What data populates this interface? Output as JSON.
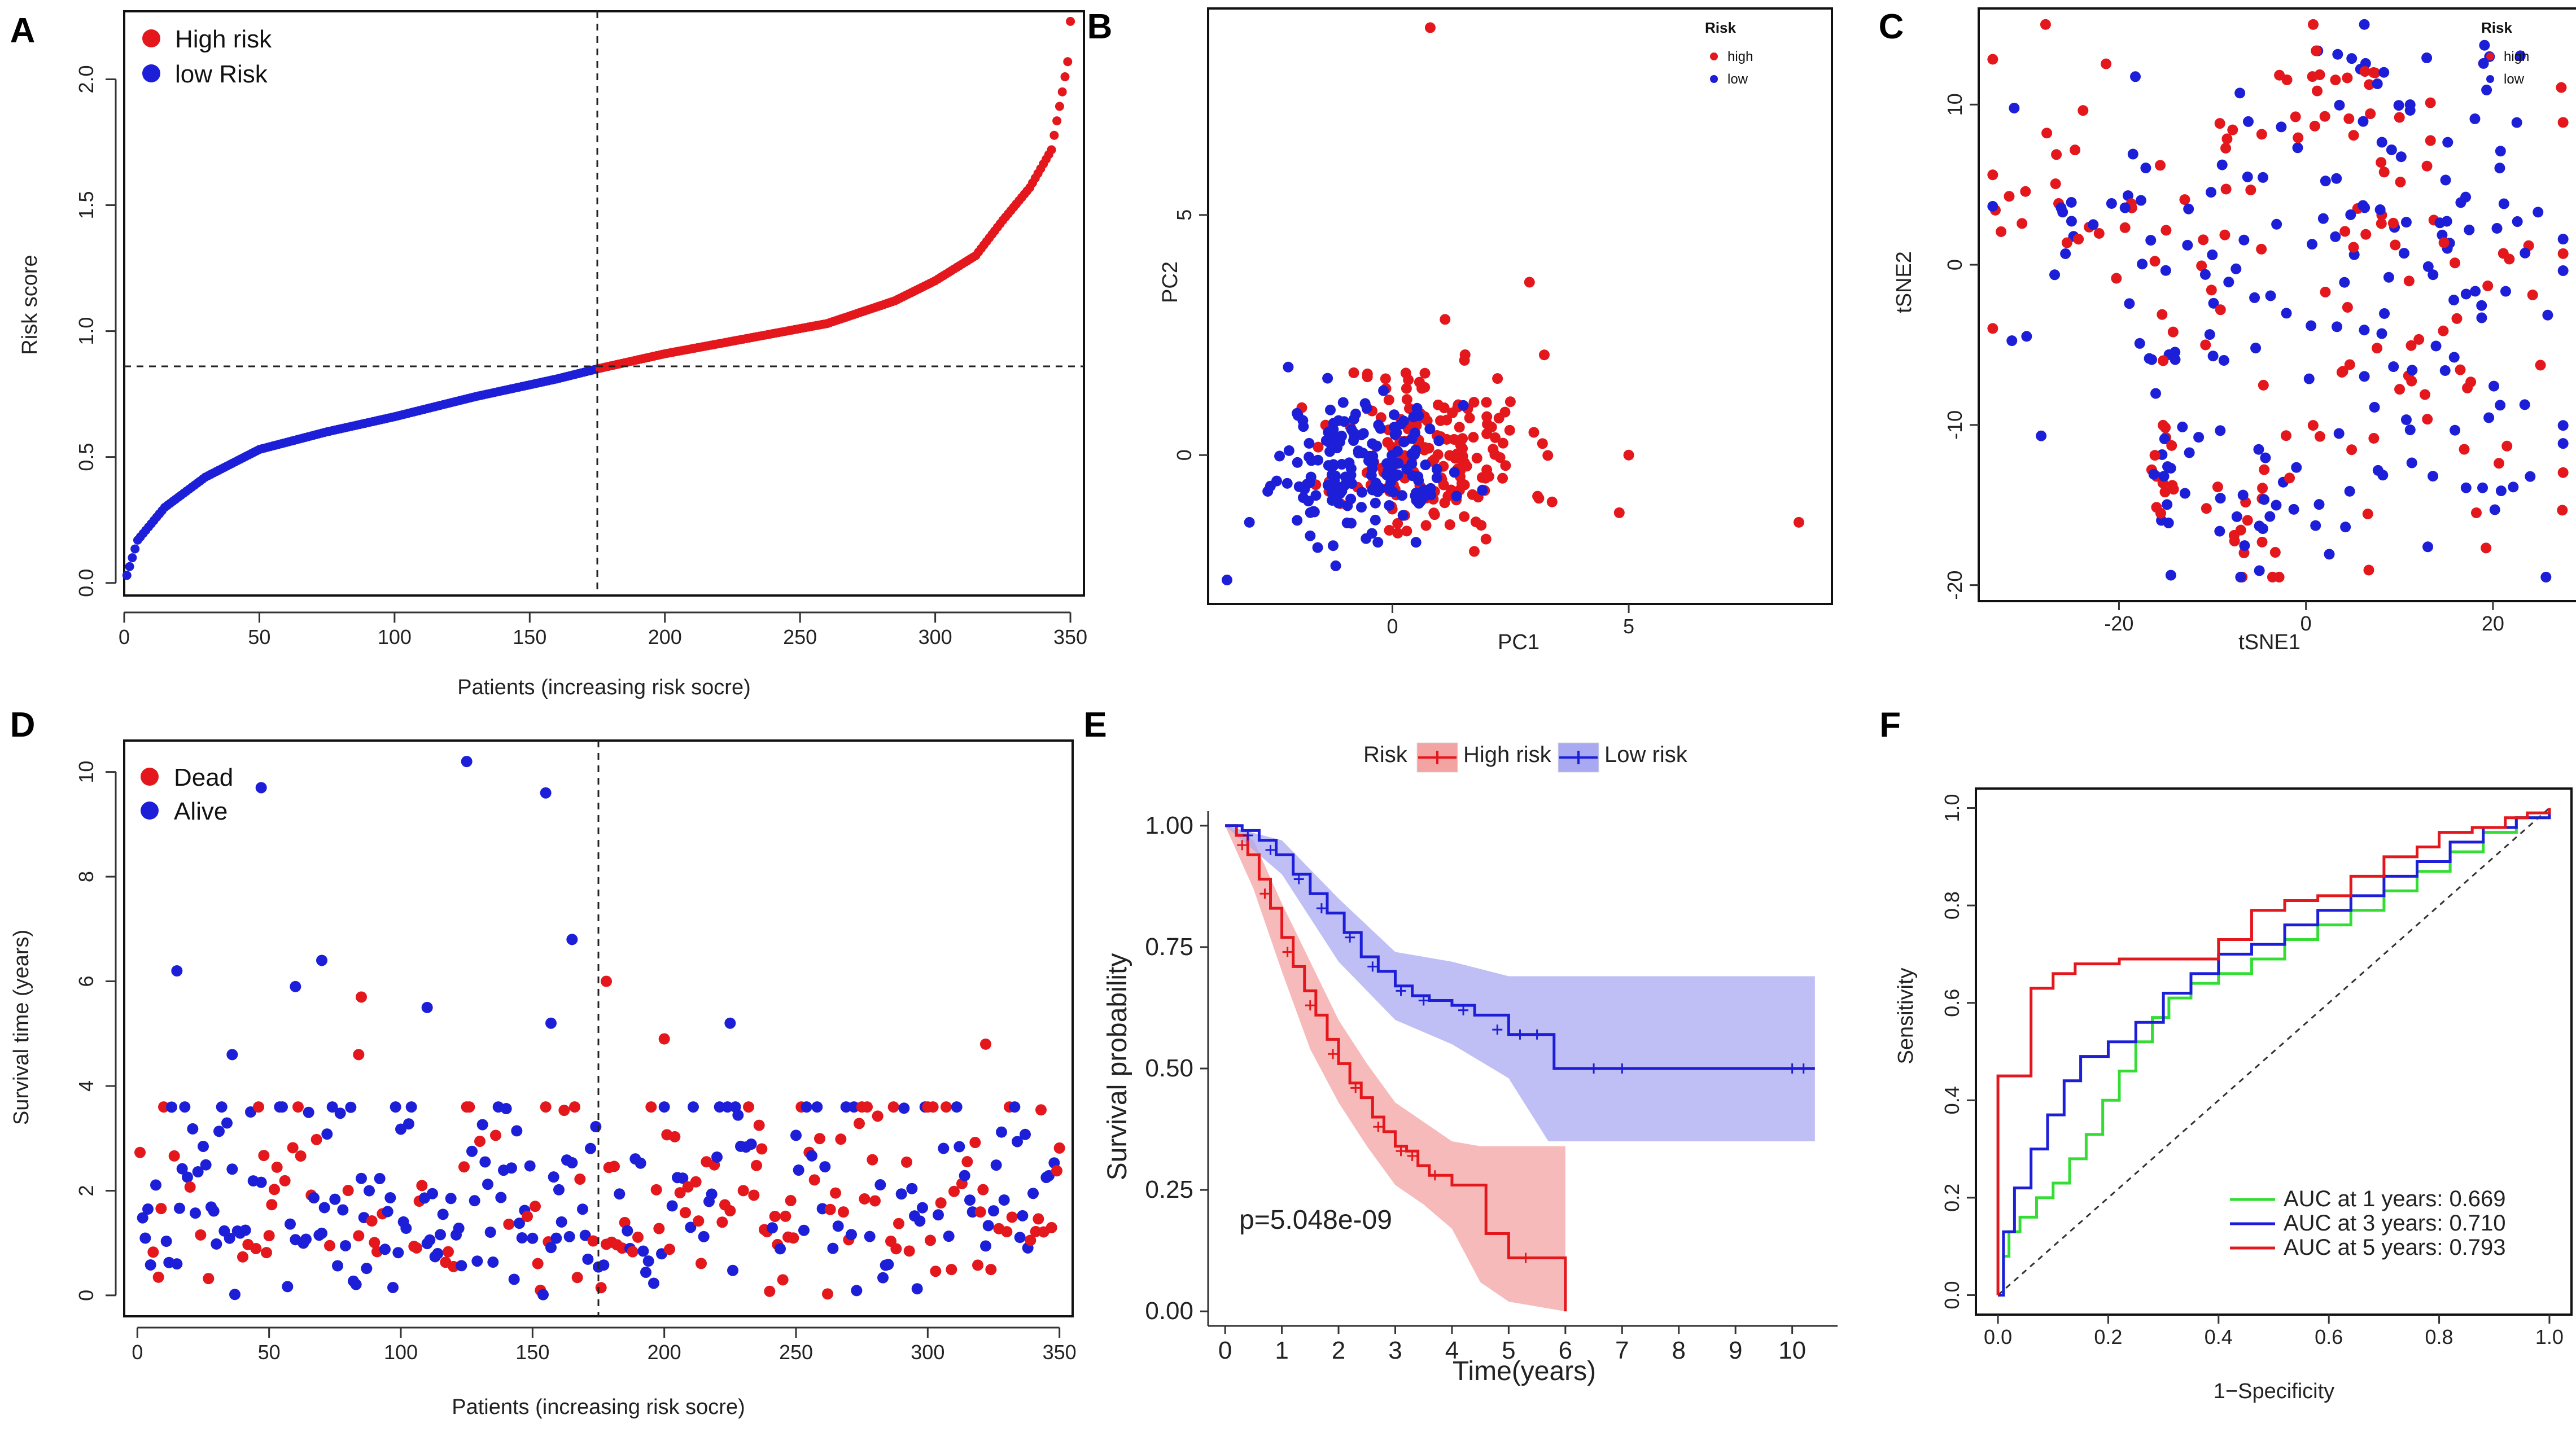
{
  "colors": {
    "high": "#e3171c",
    "low": "#1d1fd8",
    "green": "#33dd33",
    "high_band": "#f4a3a3",
    "low_band": "#a9a9f2"
  },
  "chart_data": [
    {
      "panel": "A",
      "type": "scatter",
      "xlabel": "Patients (increasing risk socre)",
      "ylabel": "Risk score",
      "xlim": [
        0,
        355
      ],
      "ylim": [
        -0.05,
        2.27
      ],
      "xticks": [
        "0",
        "50",
        "100",
        "150",
        "200",
        "250",
        "300",
        "350"
      ],
      "yticks": [
        "0.0",
        "0.5",
        "1.0",
        "1.5",
        "2.0"
      ],
      "cutoff_x": 175,
      "cutoff_y": 0.86,
      "legend": [
        "High risk",
        "low Risk"
      ],
      "n_patients": 350,
      "curve_anchors": [
        [
          1,
          0.03
        ],
        [
          5,
          0.17
        ],
        [
          15,
          0.3
        ],
        [
          30,
          0.42
        ],
        [
          50,
          0.53
        ],
        [
          75,
          0.6
        ],
        [
          100,
          0.66
        ],
        [
          130,
          0.74
        ],
        [
          160,
          0.81
        ],
        [
          175,
          0.85
        ],
        [
          200,
          0.91
        ],
        [
          230,
          0.97
        ],
        [
          260,
          1.03
        ],
        [
          285,
          1.12
        ],
        [
          300,
          1.2
        ],
        [
          315,
          1.3
        ],
        [
          325,
          1.44
        ],
        [
          335,
          1.57
        ],
        [
          343,
          1.72
        ],
        [
          347,
          1.95
        ],
        [
          349,
          2.07
        ],
        [
          350,
          2.23
        ]
      ]
    },
    {
      "panel": "B",
      "type": "scatter",
      "xlabel": "PC1",
      "ylabel": "PC2",
      "xlim": [
        -3.9,
        9.3
      ],
      "ylim": [
        -3.1,
        9.3
      ],
      "xticks": [
        "0",
        "5"
      ],
      "yticks": [
        "0",
        "5"
      ],
      "legend_title": "Risk",
      "legend": [
        "high",
        "low"
      ],
      "series": [
        {
          "name": "high",
          "n": 175,
          "center": [
            0.9,
            0.1
          ],
          "spread": [
            1.0,
            1.0
          ]
        },
        {
          "name": "low",
          "n": 175,
          "center": [
            -0.6,
            -0.2
          ],
          "spread": [
            0.9,
            0.7
          ]
        }
      ],
      "outliers": [
        [
          0.8,
          8.9
        ],
        [
          8.6,
          -1.4
        ],
        [
          5.0,
          0.0
        ],
        [
          4.8,
          -1.2
        ],
        [
          2.9,
          3.6
        ],
        [
          -3.5,
          -2.6
        ]
      ]
    },
    {
      "panel": "C",
      "type": "scatter",
      "xlabel": "tSNE1",
      "ylabel": "tSNE2",
      "xlim": [
        -35,
        29
      ],
      "ylim": [
        -21,
        16
      ],
      "xticks": [
        "-20",
        "0",
        "20"
      ],
      "yticks": [
        "-20",
        "-10",
        "0",
        "10"
      ],
      "legend_title": "Risk",
      "legend": [
        "high",
        "low"
      ],
      "series": [
        {
          "name": "high",
          "n": 175
        },
        {
          "name": "low",
          "n": 175
        }
      ]
    },
    {
      "panel": "D",
      "type": "scatter",
      "xlabel": "Patients (increasing risk socre)",
      "ylabel": "Survival time (years)",
      "xlim": [
        -5,
        355
      ],
      "ylim": [
        -0.4,
        10.6
      ],
      "xticks": [
        "0",
        "50",
        "100",
        "150",
        "200",
        "250",
        "300",
        "350"
      ],
      "yticks": [
        "0",
        "2",
        "4",
        "6",
        "8",
        "10"
      ],
      "cutoff_x": 175,
      "legend": [
        "Dead",
        "Alive"
      ],
      "highlights": [
        [
          125,
          10.2,
          "Alive"
        ],
        [
          47,
          9.7,
          "Alive"
        ],
        [
          155,
          9.6,
          "Alive"
        ],
        [
          165,
          6.8,
          "Alive"
        ],
        [
          70,
          6.4,
          "Alive"
        ],
        [
          15,
          6.2,
          "Alive"
        ],
        [
          178,
          6.0,
          "Dead"
        ],
        [
          60,
          5.9,
          "Alive"
        ],
        [
          85,
          5.7,
          "Dead"
        ],
        [
          110,
          5.5,
          "Alive"
        ],
        [
          200,
          4.9,
          "Dead"
        ],
        [
          225,
          5.2,
          "Alive"
        ],
        [
          322,
          4.8,
          "Dead"
        ],
        [
          84,
          4.6,
          "Dead"
        ],
        [
          36,
          4.6,
          "Alive"
        ],
        [
          157,
          5.2,
          "Alive"
        ]
      ]
    },
    {
      "panel": "E",
      "type": "line",
      "subtype": "kaplan-meier",
      "xlabel": "Time(years)",
      "ylabel": "Survival probability",
      "xlim": [
        -0.3,
        10.8
      ],
      "ylim": [
        -0.03,
        1.03
      ],
      "xticks": [
        "0",
        "1",
        "2",
        "3",
        "4",
        "5",
        "6",
        "7",
        "8",
        "9",
        "10"
      ],
      "yticks": [
        "0.00",
        "0.25",
        "0.50",
        "0.75",
        "1.00"
      ],
      "legend_title": "Risk",
      "legend": [
        "High risk",
        "Low risk"
      ],
      "pvalue": "p=5.048e-09",
      "series": [
        {
          "name": "High risk",
          "points": [
            [
              0,
              1.0
            ],
            [
              0.2,
              0.98
            ],
            [
              0.4,
              0.94
            ],
            [
              0.6,
              0.89
            ],
            [
              0.8,
              0.83
            ],
            [
              1.0,
              0.77
            ],
            [
              1.2,
              0.71
            ],
            [
              1.4,
              0.66
            ],
            [
              1.6,
              0.61
            ],
            [
              1.8,
              0.56
            ],
            [
              2.0,
              0.51
            ],
            [
              2.2,
              0.47
            ],
            [
              2.4,
              0.44
            ],
            [
              2.6,
              0.4
            ],
            [
              2.8,
              0.37
            ],
            [
              3.0,
              0.34
            ],
            [
              3.2,
              0.33
            ],
            [
              3.4,
              0.3
            ],
            [
              3.6,
              0.28
            ],
            [
              4.0,
              0.26
            ],
            [
              4.6,
              0.16
            ],
            [
              5.0,
              0.11
            ],
            [
              5.6,
              0.11
            ],
            [
              6.0,
              0.11
            ],
            [
              6.0,
              0.0
            ]
          ],
          "lower": [
            [
              0,
              1.0
            ],
            [
              0.5,
              0.87
            ],
            [
              1.0,
              0.7
            ],
            [
              1.5,
              0.54
            ],
            [
              2.0,
              0.43
            ],
            [
              2.5,
              0.34
            ],
            [
              3.0,
              0.26
            ],
            [
              3.5,
              0.22
            ],
            [
              4.0,
              0.17
            ],
            [
              4.5,
              0.06
            ],
            [
              5.0,
              0.02
            ],
            [
              6.0,
              0.0
            ]
          ],
          "upper": [
            [
              0,
              1.0
            ],
            [
              0.5,
              0.97
            ],
            [
              1.0,
              0.84
            ],
            [
              1.5,
              0.72
            ],
            [
              2.0,
              0.6
            ],
            [
              2.5,
              0.51
            ],
            [
              3.0,
              0.43
            ],
            [
              3.5,
              0.39
            ],
            [
              4.0,
              0.35
            ],
            [
              4.5,
              0.34
            ],
            [
              5.0,
              0.34
            ],
            [
              6.0,
              0.34
            ]
          ],
          "censor": [
            [
              0.3,
              0.96
            ],
            [
              0.7,
              0.86
            ],
            [
              1.1,
              0.74
            ],
            [
              1.5,
              0.63
            ],
            [
              1.9,
              0.53
            ],
            [
              2.3,
              0.46
            ],
            [
              2.7,
              0.38
            ],
            [
              3.1,
              0.33
            ],
            [
              3.3,
              0.32
            ],
            [
              3.7,
              0.28
            ],
            [
              5.3,
              0.11
            ]
          ]
        },
        {
          "name": "Low risk",
          "points": [
            [
              0,
              1.0
            ],
            [
              0.3,
              0.99
            ],
            [
              0.6,
              0.97
            ],
            [
              0.9,
              0.94
            ],
            [
              1.2,
              0.9
            ],
            [
              1.5,
              0.86
            ],
            [
              1.8,
              0.82
            ],
            [
              2.1,
              0.78
            ],
            [
              2.4,
              0.73
            ],
            [
              2.7,
              0.7
            ],
            [
              3.0,
              0.67
            ],
            [
              3.3,
              0.65
            ],
            [
              3.6,
              0.64
            ],
            [
              4.0,
              0.63
            ],
            [
              4.4,
              0.61
            ],
            [
              5.0,
              0.57
            ],
            [
              5.6,
              0.57
            ],
            [
              5.8,
              0.5
            ],
            [
              10.4,
              0.5
            ]
          ],
          "lower": [
            [
              0,
              1.0
            ],
            [
              1.0,
              0.9
            ],
            [
              2.0,
              0.72
            ],
            [
              3.0,
              0.6
            ],
            [
              4.0,
              0.55
            ],
            [
              5.0,
              0.48
            ],
            [
              5.7,
              0.35
            ],
            [
              10.4,
              0.35
            ]
          ],
          "upper": [
            [
              0,
              1.0
            ],
            [
              1.0,
              0.97
            ],
            [
              2.0,
              0.85
            ],
            [
              3.0,
              0.74
            ],
            [
              4.0,
              0.72
            ],
            [
              5.0,
              0.69
            ],
            [
              5.7,
              0.69
            ],
            [
              10.4,
              0.69
            ]
          ],
          "censor": [
            [
              0.4,
              0.98
            ],
            [
              0.8,
              0.95
            ],
            [
              1.3,
              0.89
            ],
            [
              1.7,
              0.83
            ],
            [
              2.2,
              0.77
            ],
            [
              2.6,
              0.71
            ],
            [
              3.1,
              0.66
            ],
            [
              3.5,
              0.64
            ],
            [
              4.2,
              0.62
            ],
            [
              4.8,
              0.58
            ],
            [
              5.2,
              0.57
            ],
            [
              5.5,
              0.57
            ],
            [
              6.5,
              0.5
            ],
            [
              7.0,
              0.5
            ],
            [
              10.0,
              0.5
            ],
            [
              10.2,
              0.5
            ]
          ]
        }
      ]
    },
    {
      "panel": "F",
      "type": "line",
      "subtype": "roc",
      "xlabel": "1−Specificity",
      "ylabel": "Sensitivity",
      "xlim": [
        -0.04,
        1.04
      ],
      "ylim": [
        -0.04,
        1.04
      ],
      "xticks": [
        "0.0",
        "0.2",
        "0.4",
        "0.6",
        "0.8",
        "1.0"
      ],
      "yticks": [
        "0.0",
        "0.2",
        "0.4",
        "0.6",
        "0.8",
        "1.0"
      ],
      "series": [
        {
          "name": "1 years",
          "auc": 0.669,
          "label": "AUC at 1 years: 0.669",
          "points": [
            [
              0,
              0
            ],
            [
              0.01,
              0.08
            ],
            [
              0.02,
              0.13
            ],
            [
              0.04,
              0.16
            ],
            [
              0.07,
              0.2
            ],
            [
              0.1,
              0.23
            ],
            [
              0.13,
              0.28
            ],
            [
              0.16,
              0.33
            ],
            [
              0.19,
              0.4
            ],
            [
              0.22,
              0.46
            ],
            [
              0.25,
              0.52
            ],
            [
              0.28,
              0.57
            ],
            [
              0.31,
              0.61
            ],
            [
              0.35,
              0.64
            ],
            [
              0.4,
              0.66
            ],
            [
              0.46,
              0.69
            ],
            [
              0.52,
              0.73
            ],
            [
              0.58,
              0.76
            ],
            [
              0.64,
              0.79
            ],
            [
              0.7,
              0.83
            ],
            [
              0.76,
              0.87
            ],
            [
              0.82,
              0.91
            ],
            [
              0.88,
              0.95
            ],
            [
              0.94,
              0.98
            ],
            [
              1.0,
              1.0
            ]
          ]
        },
        {
          "name": "3 years",
          "auc": 0.71,
          "label": "AUC at 3 years: 0.710",
          "points": [
            [
              0,
              0
            ],
            [
              0.01,
              0.13
            ],
            [
              0.03,
              0.22
            ],
            [
              0.06,
              0.3
            ],
            [
              0.09,
              0.37
            ],
            [
              0.12,
              0.44
            ],
            [
              0.15,
              0.49
            ],
            [
              0.2,
              0.52
            ],
            [
              0.25,
              0.56
            ],
            [
              0.3,
              0.62
            ],
            [
              0.35,
              0.66
            ],
            [
              0.4,
              0.7
            ],
            [
              0.46,
              0.72
            ],
            [
              0.52,
              0.76
            ],
            [
              0.58,
              0.79
            ],
            [
              0.64,
              0.82
            ],
            [
              0.7,
              0.86
            ],
            [
              0.76,
              0.89
            ],
            [
              0.82,
              0.93
            ],
            [
              0.88,
              0.96
            ],
            [
              0.94,
              0.98
            ],
            [
              1.0,
              1.0
            ]
          ]
        },
        {
          "name": "5 years",
          "auc": 0.793,
          "label": "AUC at 5 years: 0.793",
          "points": [
            [
              0,
              0
            ],
            [
              0.0,
              0.45
            ],
            [
              0.06,
              0.45
            ],
            [
              0.06,
              0.63
            ],
            [
              0.1,
              0.66
            ],
            [
              0.14,
              0.68
            ],
            [
              0.22,
              0.69
            ],
            [
              0.32,
              0.69
            ],
            [
              0.4,
              0.73
            ],
            [
              0.46,
              0.79
            ],
            [
              0.52,
              0.81
            ],
            [
              0.58,
              0.82
            ],
            [
              0.64,
              0.86
            ],
            [
              0.7,
              0.9
            ],
            [
              0.76,
              0.92
            ],
            [
              0.8,
              0.95
            ],
            [
              0.86,
              0.96
            ],
            [
              0.92,
              0.98
            ],
            [
              0.96,
              0.99
            ],
            [
              1.0,
              1.0
            ]
          ]
        }
      ]
    }
  ]
}
